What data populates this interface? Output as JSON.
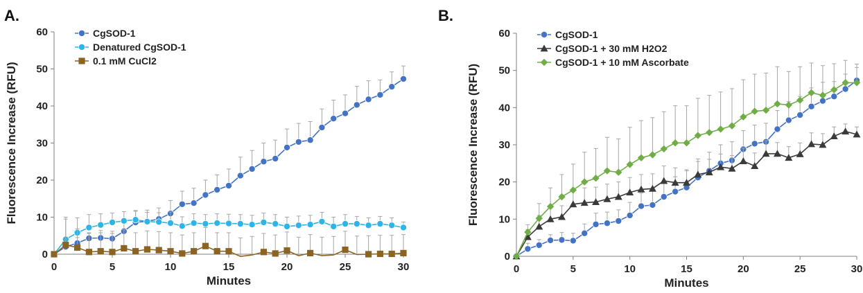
{
  "chart_data": [
    {
      "panel_label": "A.",
      "type": "line",
      "xlabel": "Minutes",
      "ylabel": "Fluorescence Increase (RFU)",
      "xlim": [
        0,
        30
      ],
      "ylim": [
        0,
        60
      ],
      "xticks": [
        0,
        5,
        10,
        15,
        20,
        25,
        30
      ],
      "yticks": [
        0,
        10,
        20,
        30,
        40,
        50,
        60
      ],
      "legend_position": "top-left",
      "series": [
        {
          "name": "CgSOD-1",
          "color": "#4472C4",
          "marker": "circle",
          "x": [
            0,
            1,
            2,
            3,
            4,
            5,
            6,
            7,
            8,
            9,
            10,
            11,
            12,
            13,
            14,
            15,
            16,
            17,
            18,
            19,
            20,
            21,
            22,
            23,
            24,
            25,
            26,
            27,
            28,
            29,
            30
          ],
          "y": [
            0,
            2,
            3,
            4.3,
            4.4,
            4.2,
            6.2,
            8.6,
            8.9,
            9.5,
            11,
            13.5,
            13.8,
            16,
            17.4,
            18.5,
            21.2,
            23,
            25,
            25.8,
            28.8,
            30.3,
            30.8,
            34.2,
            36.6,
            38,
            40.3,
            41.8,
            43,
            45.2,
            47.3
          ],
          "error": [
            0,
            1.5,
            1.5,
            1.5,
            2,
            2,
            2.5,
            3,
            3,
            3,
            3.5,
            3.5,
            4,
            4,
            4,
            4.5,
            5,
            5,
            5,
            5,
            5,
            5,
            5,
            5,
            5,
            5,
            5,
            5,
            4,
            4,
            3.5
          ]
        },
        {
          "name": "Denatured CgSOD-1",
          "color": "#2FB4E8",
          "marker": "circle",
          "x": [
            0,
            1,
            2,
            3,
            4,
            5,
            6,
            7,
            8,
            9,
            10,
            11,
            12,
            13,
            14,
            15,
            16,
            17,
            18,
            19,
            20,
            21,
            22,
            23,
            24,
            25,
            26,
            27,
            28,
            29,
            30
          ],
          "y": [
            0,
            4,
            5.8,
            7.2,
            7.9,
            8.6,
            9,
            9.3,
            8.8,
            8.7,
            8.4,
            7.6,
            8.4,
            8.2,
            8.4,
            8.3,
            8.2,
            8,
            8.6,
            8.2,
            7.5,
            7.8,
            8,
            8.8,
            7.5,
            8.2,
            8.2,
            7.8,
            8.2,
            7.8,
            7.2
          ],
          "error": [
            0,
            6,
            4,
            3.5,
            3,
            2.5,
            2.5,
            2.5,
            2.5,
            2.5,
            3,
            2.5,
            2.5,
            2.5,
            2.5,
            2.5,
            2.5,
            2.5,
            2.5,
            2.5,
            2.5,
            2.5,
            2.5,
            2.5,
            2.5,
            2.5,
            2,
            2,
            2,
            2,
            1.5
          ]
        },
        {
          "name": "0.1 mM CuCl2",
          "color": "#8B6424",
          "marker": "square",
          "x": [
            0,
            1,
            2,
            3,
            4,
            5,
            6,
            7,
            8,
            9,
            10,
            11,
            12,
            13,
            14,
            15,
            16,
            17,
            18,
            19,
            20,
            21,
            22,
            23,
            24,
            25,
            26,
            27,
            28,
            29,
            30
          ],
          "y": [
            0,
            2.5,
            1.8,
            0.6,
            0.8,
            0.6,
            1.6,
            0.8,
            1.3,
            1.1,
            0.8,
            0.2,
            0.8,
            2.2,
            0.8,
            0.8,
            -0.6,
            -0.2,
            0.6,
            0.2,
            1,
            -0.4,
            0.3,
            -0.4,
            -0.2,
            1.2,
            -0.1,
            0,
            0.1,
            0.1,
            0.3
          ],
          "error": [
            0,
            7,
            5,
            5,
            5,
            5,
            5,
            5,
            5,
            5,
            5,
            5,
            5,
            5,
            5,
            5,
            5,
            5,
            5,
            5,
            5,
            5,
            5,
            5,
            5,
            5,
            5,
            5,
            5,
            5,
            5
          ]
        }
      ]
    },
    {
      "panel_label": "B.",
      "type": "line",
      "xlabel": "Minutes",
      "ylabel": "Fluorescence Increase (RFU)",
      "xlim": [
        0,
        30
      ],
      "ylim": [
        0,
        60
      ],
      "xticks": [
        0,
        5,
        10,
        15,
        20,
        25,
        30
      ],
      "yticks": [
        0,
        10,
        20,
        30,
        40,
        50,
        60
      ],
      "legend_position": "top-left",
      "series": [
        {
          "name": "CgSOD-1",
          "color": "#4472C4",
          "marker": "circle",
          "x": [
            0,
            1,
            2,
            3,
            4,
            5,
            6,
            7,
            8,
            9,
            10,
            11,
            12,
            13,
            14,
            15,
            16,
            17,
            18,
            19,
            20,
            21,
            22,
            23,
            24,
            25,
            26,
            27,
            28,
            29,
            30
          ],
          "y": [
            0,
            2,
            3,
            4.3,
            4.4,
            4.2,
            6.2,
            8.6,
            8.9,
            9.5,
            11,
            13.5,
            13.8,
            16,
            17.4,
            18.5,
            21.2,
            23,
            25,
            25.8,
            28.8,
            30.3,
            30.8,
            34.2,
            36.6,
            38,
            40.3,
            41.8,
            43,
            45,
            47.3
          ],
          "error": [
            0,
            1.5,
            1.5,
            1.5,
            2,
            2,
            2.5,
            3,
            3,
            3,
            3.5,
            3.5,
            4,
            4,
            4,
            4.5,
            5,
            5,
            5,
            5,
            5,
            5,
            5,
            5,
            5,
            5,
            5,
            5,
            4,
            4,
            3.5
          ]
        },
        {
          "name": "CgSOD-1 + 30 mM H2O2",
          "color": "#3A3A3A",
          "marker": "triangle",
          "x": [
            0,
            1,
            2,
            3,
            4,
            5,
            6,
            7,
            8,
            9,
            10,
            11,
            12,
            13,
            14,
            15,
            16,
            17,
            18,
            19,
            20,
            21,
            22,
            23,
            24,
            25,
            26,
            27,
            28,
            29,
            30
          ],
          "y": [
            0,
            5.2,
            8,
            10,
            10.6,
            14,
            14.4,
            14.6,
            15.4,
            16,
            17.2,
            18,
            18.2,
            20.3,
            19.8,
            19.8,
            22,
            22.6,
            24,
            23.6,
            25.6,
            24.3,
            27.6,
            27.6,
            26.5,
            27.5,
            30.2,
            30,
            32.3,
            33.6,
            32.8
          ],
          "error": [
            0,
            2,
            3,
            3,
            3,
            4,
            4,
            4,
            4,
            4,
            4,
            4,
            4,
            4,
            4,
            3.5,
            3.5,
            3.5,
            3.5,
            3.5,
            3.5,
            3.5,
            3.5,
            3,
            3,
            3,
            3,
            3,
            2.5,
            2,
            2
          ]
        },
        {
          "name": "CgSOD-1 + 10 mM Ascorbate",
          "color": "#70AD47",
          "marker": "diamond",
          "x": [
            0,
            1,
            2,
            3,
            4,
            5,
            6,
            7,
            8,
            9,
            10,
            11,
            12,
            13,
            14,
            15,
            16,
            17,
            18,
            19,
            20,
            21,
            22,
            23,
            24,
            25,
            26,
            27,
            28,
            29,
            30
          ],
          "y": [
            0,
            6.5,
            10.2,
            13.4,
            16,
            17.8,
            20,
            21,
            23,
            22.6,
            24.7,
            26.5,
            27.3,
            28.9,
            30.5,
            30.5,
            32.5,
            33.3,
            34.2,
            35.1,
            37.5,
            39,
            39.3,
            41,
            40.7,
            42,
            44,
            43.3,
            44.8,
            46.7,
            46.7
          ],
          "error": [
            0,
            2,
            4,
            5,
            6,
            7,
            8,
            8,
            9,
            9,
            10,
            10,
            10,
            10,
            10,
            10,
            10,
            10,
            10,
            10,
            10,
            10,
            10,
            10,
            9,
            9,
            8,
            8,
            7,
            6,
            5
          ]
        }
      ]
    }
  ]
}
